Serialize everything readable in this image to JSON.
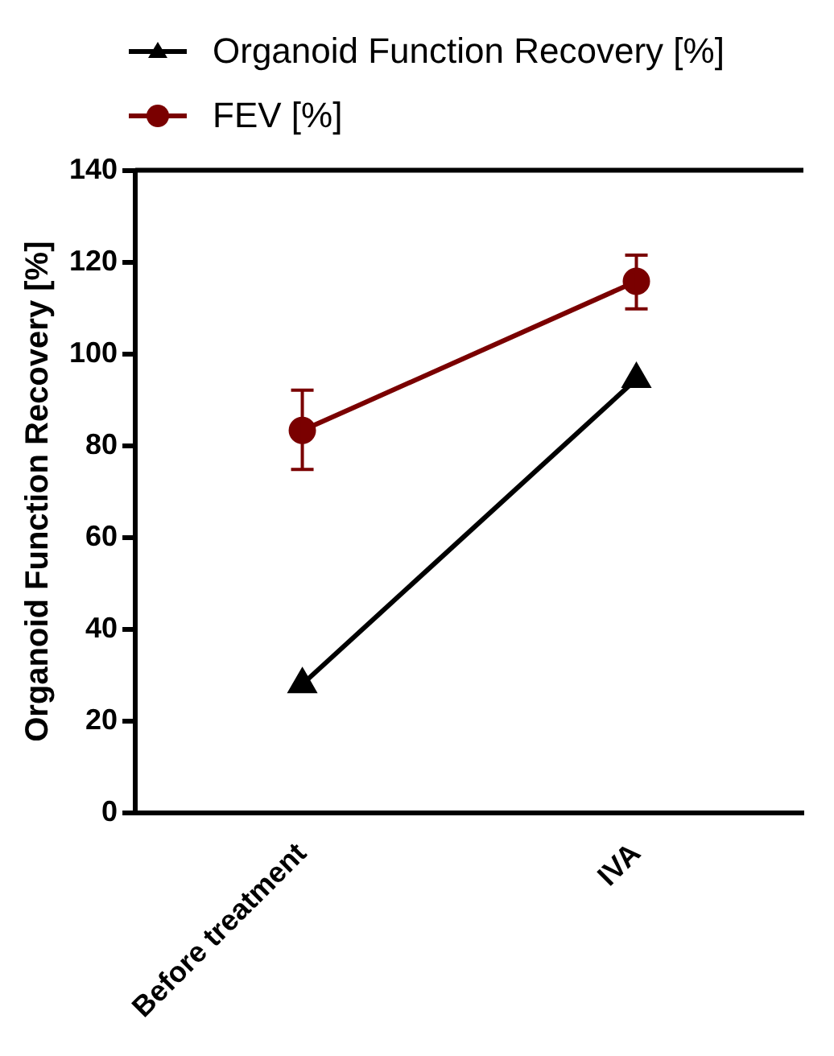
{
  "chart_data": {
    "type": "line",
    "ylabel": "Organoid Function Recovery [%]",
    "categories": [
      "Before treatment",
      "IVA"
    ],
    "series": [
      {
        "name": "Organoid Function Recovery [%]",
        "color": "#000000",
        "values": [
          28,
          94.5
        ],
        "marker": "triangle"
      },
      {
        "name": "FEV [%]",
        "color": "#7a0000",
        "values": [
          83.3,
          115.8
        ],
        "marker": "circle",
        "errors": [
          [
            74.8,
            92.1
          ],
          [
            109.8,
            121.5
          ]
        ]
      }
    ],
    "ylim": [
      0,
      140
    ],
    "yticks": [
      0,
      20,
      40,
      60,
      80,
      100,
      120,
      140
    ],
    "grid": false,
    "legend": "top left"
  }
}
